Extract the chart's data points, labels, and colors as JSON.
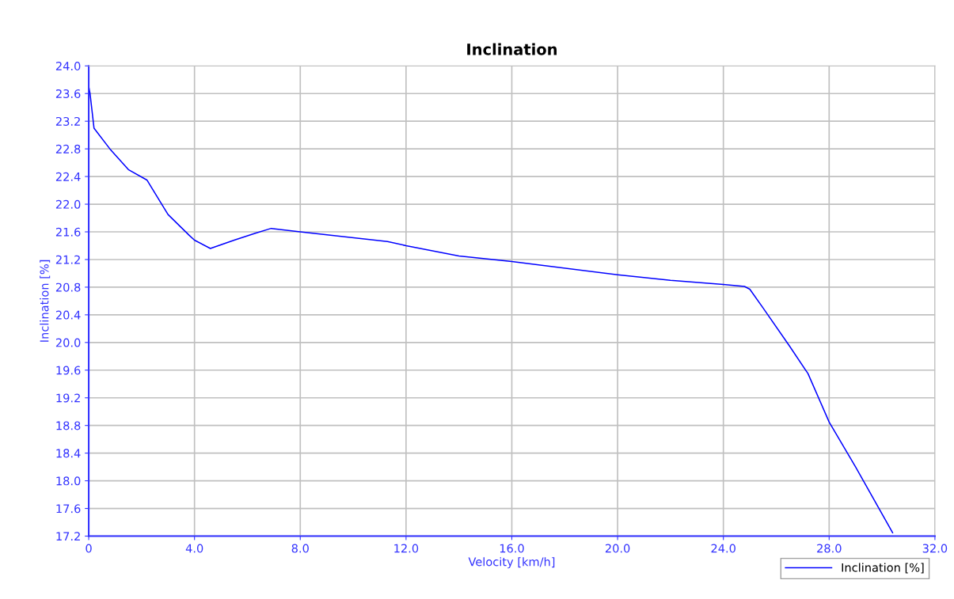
{
  "chart_data": {
    "type": "line",
    "title": "Inclination",
    "xlabel": "Velocity [km/h]",
    "ylabel": "Inclination [%]",
    "xlim": [
      0,
      32
    ],
    "ylim": [
      17.2,
      24.0
    ],
    "xticks": [
      {
        "value": 0,
        "label": "0"
      },
      {
        "value": 4,
        "label": "4.0"
      },
      {
        "value": 8,
        "label": "8.0"
      },
      {
        "value": 12,
        "label": "12.0"
      },
      {
        "value": 16,
        "label": "16.0"
      },
      {
        "value": 20,
        "label": "20.0"
      },
      {
        "value": 24,
        "label": "24.0"
      },
      {
        "value": 28,
        "label": "28.0"
      },
      {
        "value": 32,
        "label": "32.0"
      }
    ],
    "yticks": [
      {
        "value": 17.2,
        "label": "17.2"
      },
      {
        "value": 17.6,
        "label": "17.6"
      },
      {
        "value": 18.0,
        "label": "18.0"
      },
      {
        "value": 18.4,
        "label": "18.4"
      },
      {
        "value": 18.8,
        "label": "18.8"
      },
      {
        "value": 19.2,
        "label": "19.2"
      },
      {
        "value": 19.6,
        "label": "19.6"
      },
      {
        "value": 20.0,
        "label": "20.0"
      },
      {
        "value": 20.4,
        "label": "20.4"
      },
      {
        "value": 20.8,
        "label": "20.8"
      },
      {
        "value": 21.2,
        "label": "21.2"
      },
      {
        "value": 21.6,
        "label": "21.6"
      },
      {
        "value": 22.0,
        "label": "22.0"
      },
      {
        "value": 22.4,
        "label": "22.4"
      },
      {
        "value": 22.8,
        "label": "22.8"
      },
      {
        "value": 23.2,
        "label": "23.2"
      },
      {
        "value": 23.6,
        "label": "23.6"
      },
      {
        "value": 24.0,
        "label": "24.0"
      }
    ],
    "grid": true,
    "legend": "bottom right",
    "marker": "none",
    "line_style": "solid",
    "series": [
      {
        "name": "Inclination [%]",
        "color": "#0000ff",
        "x": [
          0,
          0.05,
          0.2,
          0.8,
          1.5,
          2.2,
          3.0,
          3.8,
          4.0,
          4.6,
          5.5,
          6.3,
          6.9,
          8.0,
          11.3,
          12.0,
          14.0,
          16.0,
          20.0,
          22.0,
          24.0,
          24.8,
          25.0,
          25.5,
          26.5,
          27.2,
          28.0,
          29.0,
          30.4
        ],
        "values": [
          23.7,
          23.6,
          23.1,
          22.8,
          22.5,
          22.35,
          21.85,
          21.55,
          21.48,
          21.36,
          21.48,
          21.58,
          21.65,
          21.6,
          21.46,
          21.4,
          21.25,
          21.17,
          20.98,
          20.9,
          20.84,
          20.81,
          20.77,
          20.5,
          19.95,
          19.55,
          18.85,
          18.2,
          17.25
        ]
      }
    ]
  }
}
